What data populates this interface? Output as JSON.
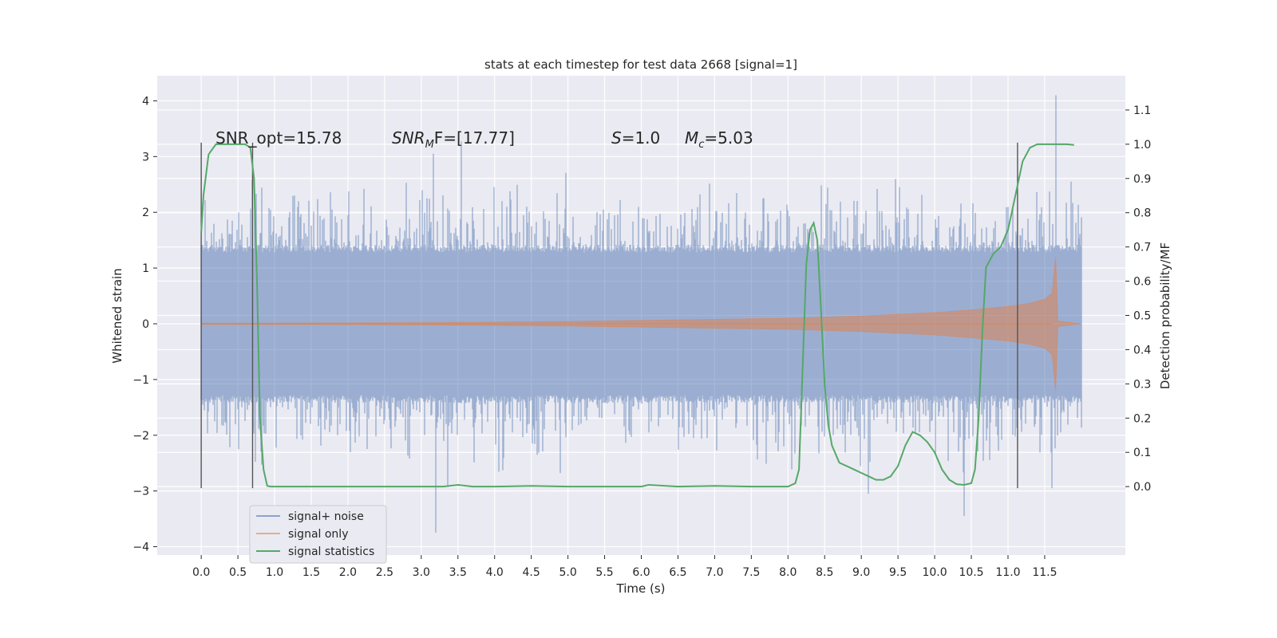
{
  "chart_data": {
    "type": "line",
    "title": "stats at each timestep for test data 2668 [signal=1]",
    "xlabel": "Time (s)",
    "ylabel": "Whitened strain",
    "ylabel_right": "Detection probability/MF",
    "xlim": [
      -0.6,
      12.6
    ],
    "ylim": [
      -4.15,
      4.45
    ],
    "ylim_right": [
      -0.2,
      1.2
    ],
    "x_ticks": [
      0.0,
      0.5,
      1.0,
      1.5,
      2.0,
      2.5,
      3.0,
      3.5,
      4.0,
      4.5,
      5.0,
      5.5,
      6.0,
      6.5,
      7.0,
      7.5,
      8.0,
      8.5,
      9.0,
      9.5,
      10.0,
      10.5,
      11.0,
      11.5
    ],
    "x_tick_labels": [
      "0.0",
      "0.5",
      "1.0",
      "1.5",
      "2.0",
      "2.5",
      "3.0",
      "3.5",
      "4.0",
      "4.5",
      "5.0",
      "5.5",
      "6.0",
      "6.5",
      "7.0",
      "7.5",
      "8.0",
      "8.5",
      "9.0",
      "9.5",
      "10.0",
      "10.5",
      "11.0",
      "11.5"
    ],
    "y_ticks": [
      -4,
      -3,
      -2,
      -1,
      0,
      1,
      2,
      3,
      4
    ],
    "y_tick_labels": [
      "−4",
      "−3",
      "−2",
      "−1",
      "0",
      "1",
      "2",
      "3",
      "4"
    ],
    "y_right_ticks": [
      0.0,
      0.1,
      0.2,
      0.3,
      0.4,
      0.5,
      0.6,
      0.7,
      0.8,
      0.9,
      1.0,
      1.1
    ],
    "y_right_tick_labels": [
      "0.0",
      "0.1",
      "0.2",
      "0.3",
      "0.4",
      "0.5",
      "0.6",
      "0.7",
      "0.8",
      "0.9",
      "1.0",
      "1.1"
    ],
    "grid": true,
    "legend_position": "lower-left",
    "colors": {
      "signal_noise": "#4c72b0",
      "signal_only": "#dd8452",
      "signal_statistics": "#55a868",
      "vlines": "#555555",
      "background": "#eaeaf2",
      "grid": "#ffffff"
    },
    "annotations": {
      "snr_opt": "SNR_opt=15.78",
      "snr_mf_prefix": "SNR",
      "snr_mf_sub": "M",
      "snr_mf_suffix": "F=[17.77]",
      "s_var": "S",
      "s_value": "=1.0",
      "mc_var": "M",
      "mc_sub": "c",
      "mc_value": "=5.03"
    },
    "vertical_lines": [
      {
        "x": 0.0,
        "y_range": [
          -2.95,
          3.25
        ]
      },
      {
        "x": 0.7,
        "y_range": [
          -2.95,
          3.25
        ]
      },
      {
        "x": 11.13,
        "y_range": [
          -2.95,
          3.25
        ]
      }
    ],
    "series": [
      {
        "name": "signal+ noise",
        "x_range": [
          0.0,
          12.0
        ],
        "typical_envelope": [
          -1.35,
          1.35
        ],
        "peak_values": [
          [
            3.17,
            3.05
          ],
          [
            3.2,
            -3.75
          ],
          [
            3.55,
            3.27
          ],
          [
            9.1,
            -3.05
          ],
          [
            10.4,
            -3.45
          ],
          [
            11.6,
            -2.95
          ],
          [
            11.65,
            4.1
          ]
        ]
      },
      {
        "name": "signal only",
        "envelope": [
          [
            0.0,
            0.01
          ],
          [
            2.0,
            0.015
          ],
          [
            3.0,
            0.02
          ],
          [
            4.0,
            0.03
          ],
          [
            5.0,
            0.04
          ],
          [
            6.0,
            0.06
          ],
          [
            7.0,
            0.08
          ],
          [
            8.0,
            0.1
          ],
          [
            9.0,
            0.14
          ],
          [
            10.0,
            0.2
          ],
          [
            10.5,
            0.25
          ],
          [
            11.0,
            0.31
          ],
          [
            11.3,
            0.37
          ],
          [
            11.5,
            0.44
          ],
          [
            11.6,
            0.55
          ],
          [
            11.65,
            1.2
          ],
          [
            11.68,
            0.05
          ],
          [
            12.0,
            0.0
          ]
        ]
      },
      {
        "name": "signal statistics",
        "x": [
          0.0,
          0.03,
          0.1,
          0.2,
          0.4,
          0.6,
          0.67,
          0.72,
          0.76,
          0.8,
          0.85,
          0.9,
          0.95,
          1.0,
          2.0,
          3.0,
          3.3,
          3.5,
          3.7,
          4.0,
          4.5,
          5.0,
          5.5,
          6.0,
          6.1,
          6.5,
          7.0,
          7.5,
          8.0,
          8.1,
          8.15,
          8.2,
          8.25,
          8.3,
          8.35,
          8.4,
          8.45,
          8.5,
          8.55,
          8.6,
          8.7,
          8.8,
          8.9,
          9.0,
          9.1,
          9.2,
          9.3,
          9.4,
          9.5,
          9.6,
          9.7,
          9.8,
          9.9,
          10.0,
          10.1,
          10.2,
          10.3,
          10.4,
          10.5,
          10.55,
          10.6,
          10.65,
          10.7,
          10.8,
          10.9,
          11.0,
          11.1,
          11.2,
          11.3,
          11.4,
          11.5,
          11.6,
          11.7,
          11.8,
          11.9
        ],
        "y": [
          0.74,
          0.85,
          0.97,
          1.0,
          1.0,
          1.0,
          0.99,
          0.9,
          0.6,
          0.2,
          0.05,
          0.002,
          0.0,
          0.0,
          0.0,
          0.0,
          0.0,
          0.005,
          0.0,
          0.0,
          0.002,
          0.0,
          0.0,
          0.0,
          0.005,
          0.0,
          0.002,
          0.0,
          0.0,
          0.01,
          0.05,
          0.35,
          0.65,
          0.75,
          0.77,
          0.72,
          0.52,
          0.3,
          0.18,
          0.12,
          0.07,
          0.06,
          0.05,
          0.04,
          0.03,
          0.02,
          0.02,
          0.03,
          0.06,
          0.12,
          0.16,
          0.15,
          0.13,
          0.1,
          0.05,
          0.02,
          0.007,
          0.005,
          0.01,
          0.05,
          0.2,
          0.45,
          0.64,
          0.68,
          0.7,
          0.75,
          0.85,
          0.95,
          0.99,
          1.0,
          1.0,
          1.0,
          1.0,
          1.0,
          0.998
        ]
      }
    ]
  }
}
